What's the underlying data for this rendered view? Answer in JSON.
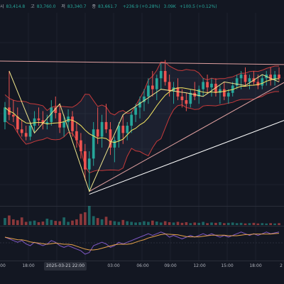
{
  "info": {
    "items": [
      {
        "label": "시",
        "value": "83,414.8"
      },
      {
        "label": "고",
        "value": "83,760.0"
      },
      {
        "label": "저",
        "value": "83,340.7"
      },
      {
        "label": "종",
        "value": "83,661.7"
      }
    ],
    "change": "+236.9 (+0.28%)",
    "extra": "3.09K",
    "extra_change": "+100.5 (+0.12%)"
  },
  "time_axis": {
    "labels": [
      "00",
      "18:00",
      "03:00",
      "06:00",
      "09:00",
      "12:00",
      "15:00",
      "18:00",
      "2"
    ],
    "cursor_label": "2025-03-21   22:00"
  },
  "colors": {
    "background": "#131722",
    "up": "#26a69a",
    "down": "#ef5350",
    "ma": "#f5e663",
    "bands": "#c73a3a",
    "trendline_upper": "#e0a0a0",
    "trendline_lower": "#ffffff",
    "zigzag": "#f0e68c",
    "oscillator": "#7e57c2",
    "signal": "#e8a34a"
  },
  "chart_data": {
    "type": "candlestick",
    "title": "",
    "xlabel": "",
    "ylabel": "",
    "ylim": [
      0,
      100
    ],
    "note_units": "price values are relative (the price scale is not visible in the screenshot)",
    "candles": [
      [
        44,
        55,
        40,
        52
      ],
      [
        52,
        72,
        45,
        48
      ],
      [
        48,
        56,
        44,
        47
      ],
      [
        47,
        52,
        38,
        40
      ],
      [
        40,
        45,
        36,
        38
      ],
      [
        38,
        42,
        34,
        36
      ],
      [
        36,
        44,
        34,
        42
      ],
      [
        42,
        50,
        38,
        46
      ],
      [
        46,
        52,
        42,
        45
      ],
      [
        45,
        50,
        40,
        43
      ],
      [
        43,
        48,
        40,
        44
      ],
      [
        44,
        56,
        42,
        52
      ],
      [
        52,
        58,
        46,
        49
      ],
      [
        49,
        54,
        38,
        41
      ],
      [
        41,
        48,
        36,
        44
      ],
      [
        44,
        51,
        40,
        47
      ],
      [
        47,
        50,
        36,
        39
      ],
      [
        39,
        44,
        30,
        34
      ],
      [
        34,
        38,
        24,
        28
      ],
      [
        28,
        32,
        12,
        18
      ],
      [
        18,
        28,
        6,
        24
      ],
      [
        24,
        44,
        20,
        40
      ],
      [
        40,
        52,
        32,
        36
      ],
      [
        36,
        48,
        30,
        44
      ],
      [
        44,
        54,
        38,
        40
      ],
      [
        40,
        44,
        26,
        30
      ],
      [
        30,
        36,
        22,
        34
      ],
      [
        34,
        44,
        30,
        42
      ],
      [
        42,
        48,
        32,
        38
      ],
      [
        38,
        44,
        34,
        42
      ],
      [
        42,
        50,
        38,
        48
      ],
      [
        48,
        54,
        44,
        52
      ],
      [
        52,
        58,
        46,
        55
      ],
      [
        55,
        62,
        50,
        58
      ],
      [
        58,
        68,
        54,
        64
      ],
      [
        64,
        72,
        58,
        62
      ],
      [
        62,
        70,
        56,
        68
      ],
      [
        68,
        76,
        62,
        72
      ],
      [
        72,
        78,
        64,
        66
      ],
      [
        66,
        70,
        58,
        61
      ],
      [
        61,
        66,
        54,
        63
      ],
      [
        63,
        68,
        56,
        58
      ],
      [
        58,
        62,
        52,
        56
      ],
      [
        56,
        60,
        50,
        54
      ],
      [
        54,
        62,
        52,
        60
      ],
      [
        60,
        66,
        56,
        58
      ],
      [
        58,
        64,
        54,
        62
      ],
      [
        62,
        68,
        58,
        66
      ],
      [
        66,
        70,
        60,
        63
      ],
      [
        63,
        68,
        58,
        65
      ],
      [
        65,
        68,
        58,
        60
      ],
      [
        60,
        64,
        54,
        62
      ],
      [
        62,
        66,
        56,
        58
      ],
      [
        58,
        62,
        54,
        60
      ],
      [
        60,
        66,
        58,
        64
      ],
      [
        64,
        70,
        62,
        68
      ],
      [
        68,
        72,
        62,
        70
      ],
      [
        70,
        74,
        64,
        66
      ],
      [
        66,
        70,
        62,
        68
      ],
      [
        68,
        72,
        64,
        66
      ],
      [
        66,
        70,
        62,
        64
      ],
      [
        64,
        70,
        62,
        68
      ],
      [
        68,
        72,
        64,
        70
      ],
      [
        70,
        74,
        64,
        67
      ],
      [
        67,
        72,
        64,
        70
      ],
      [
        70,
        74,
        66,
        68
      ]
    ],
    "volume": [
      22,
      30,
      18,
      15,
      24,
      10,
      12,
      14,
      9,
      11,
      20,
      16,
      13,
      12,
      24,
      10,
      14,
      18,
      35,
      40,
      60,
      28,
      22,
      18,
      26,
      14,
      12,
      10,
      16,
      12,
      10,
      8,
      9,
      12,
      10,
      14,
      11,
      8,
      12,
      9,
      8,
      10,
      7,
      9,
      6,
      8,
      7,
      10,
      6,
      8,
      7,
      9,
      6,
      7,
      8,
      6,
      7,
      5,
      6,
      7,
      5,
      6,
      5,
      6,
      5,
      6
    ],
    "oscillator": [
      50,
      48,
      46,
      44,
      46,
      42,
      40,
      44,
      42,
      40,
      42,
      46,
      44,
      40,
      38,
      40,
      38,
      36,
      34,
      30,
      32,
      40,
      42,
      44,
      42,
      38,
      40,
      44,
      42,
      44,
      46,
      48,
      50,
      52,
      54,
      52,
      54,
      56,
      54,
      50,
      52,
      50,
      48,
      50,
      52,
      50,
      52,
      54,
      52,
      54,
      52,
      50,
      52,
      50,
      52,
      54,
      56,
      54,
      52,
      54,
      52,
      54,
      56,
      54,
      55,
      56
    ]
  }
}
